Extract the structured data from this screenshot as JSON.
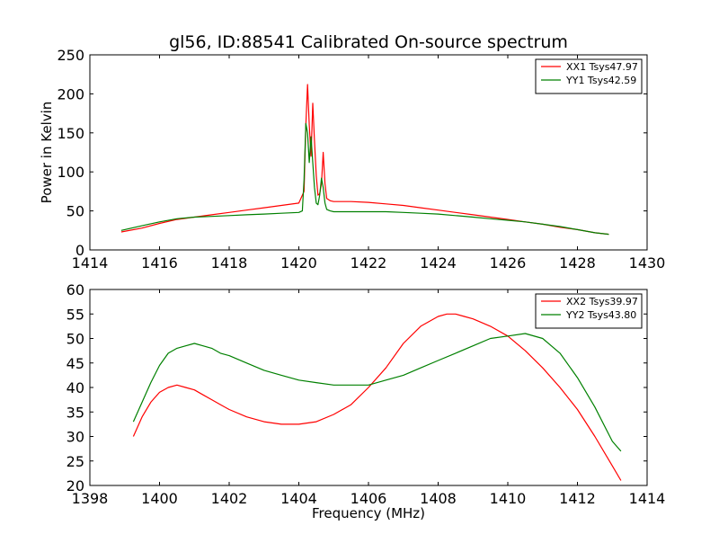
{
  "figure": {
    "title": "gl56, ID:88541 Calibrated On-source spectrum"
  },
  "chart_data": [
    {
      "type": "line",
      "xlabel": "",
      "ylabel": "Power in Kelvin",
      "xlim": [
        1414,
        1430
      ],
      "ylim": [
        0,
        250
      ],
      "xticks": [
        1414,
        1416,
        1418,
        1420,
        1422,
        1424,
        1426,
        1428,
        1430
      ],
      "yticks": [
        0,
        50,
        100,
        150,
        200,
        250
      ],
      "xtick_labels": [
        "1414",
        "1416",
        "1418",
        "1420",
        "1422",
        "1424",
        "1426",
        "1428",
        "1430"
      ],
      "ytick_labels": [
        "0",
        "50",
        "100",
        "150",
        "200",
        "250"
      ],
      "grid": false,
      "legend": "top-right",
      "series": [
        {
          "name": "XX1 Tsys47.97",
          "color": "#ff0000",
          "x": [
            1414.9,
            1415.5,
            1416.0,
            1416.5,
            1417.0,
            1417.5,
            1418.0,
            1418.5,
            1419.0,
            1419.5,
            1420.0,
            1420.15,
            1420.2,
            1420.25,
            1420.3,
            1420.35,
            1420.4,
            1420.45,
            1420.5,
            1420.55,
            1420.6,
            1420.65,
            1420.7,
            1420.75,
            1420.8,
            1420.9,
            1421.0,
            1421.5,
            1422.0,
            1422.5,
            1423.0,
            1423.5,
            1424.0,
            1424.5,
            1425.0,
            1425.5,
            1426.0,
            1426.5,
            1427.0,
            1427.5,
            1428.0,
            1428.5,
            1428.9
          ],
          "y": [
            23,
            28,
            34,
            39,
            42,
            45,
            48,
            51,
            54,
            57,
            60,
            75,
            160,
            212,
            160,
            120,
            188,
            140,
            95,
            70,
            72,
            85,
            125,
            85,
            66,
            63,
            62,
            62,
            61,
            59,
            57,
            54,
            51,
            48,
            45,
            42,
            39,
            36,
            33,
            29,
            26,
            22,
            20
          ]
        },
        {
          "name": "YY1 Tsys42.59",
          "color": "#008000",
          "x": [
            1414.9,
            1415.5,
            1416.0,
            1416.5,
            1417.0,
            1417.5,
            1418.0,
            1418.5,
            1419.0,
            1419.5,
            1420.0,
            1420.1,
            1420.15,
            1420.2,
            1420.25,
            1420.3,
            1420.35,
            1420.4,
            1420.45,
            1420.5,
            1420.55,
            1420.6,
            1420.65,
            1420.7,
            1420.75,
            1420.8,
            1420.9,
            1421.0,
            1421.5,
            1422.0,
            1422.5,
            1423.0,
            1423.5,
            1424.0,
            1424.5,
            1425.0,
            1425.5,
            1426.0,
            1426.5,
            1427.0,
            1427.5,
            1428.0,
            1428.5,
            1428.9
          ],
          "y": [
            25,
            31,
            36,
            40,
            42,
            43,
            44,
            45,
            46,
            47,
            48,
            50,
            90,
            162,
            150,
            112,
            145,
            112,
            80,
            60,
            58,
            70,
            92,
            80,
            60,
            52,
            50,
            49,
            49,
            49,
            49,
            48,
            47,
            46,
            44,
            42,
            40,
            38,
            36,
            33,
            30,
            26,
            22,
            20
          ]
        }
      ]
    },
    {
      "type": "line",
      "xlabel": "Frequency (MHz)",
      "ylabel": "",
      "xlim": [
        1398,
        1414
      ],
      "ylim": [
        20,
        60
      ],
      "xticks": [
        1398,
        1400,
        1402,
        1404,
        1406,
        1408,
        1410,
        1412,
        1414
      ],
      "yticks": [
        20,
        25,
        30,
        35,
        40,
        45,
        50,
        55,
        60
      ],
      "xtick_labels": [
        "1398",
        "1400",
        "1402",
        "1404",
        "1406",
        "1408",
        "1410",
        "1412",
        "1414"
      ],
      "ytick_labels": [
        "20",
        "25",
        "30",
        "35",
        "40",
        "45",
        "50",
        "55",
        "60"
      ],
      "grid": false,
      "legend": "top-right",
      "series": [
        {
          "name": "XX2 Tsys39.97",
          "color": "#ff0000",
          "x": [
            1399.25,
            1399.5,
            1399.75,
            1400.0,
            1400.25,
            1400.5,
            1400.75,
            1401.0,
            1401.25,
            1401.5,
            1401.75,
            1402.0,
            1402.5,
            1403.0,
            1403.5,
            1404.0,
            1404.5,
            1405.0,
            1405.5,
            1406.0,
            1406.5,
            1407.0,
            1407.5,
            1408.0,
            1408.25,
            1408.5,
            1408.75,
            1409.0,
            1409.5,
            1410.0,
            1410.5,
            1411.0,
            1411.5,
            1412.0,
            1412.5,
            1413.0,
            1413.25
          ],
          "y": [
            30,
            34,
            37,
            39,
            40,
            40.5,
            40,
            39.5,
            38.5,
            37.5,
            36.5,
            35.5,
            34,
            33,
            32.5,
            32.5,
            33,
            34.5,
            36.5,
            40,
            44,
            49,
            52.5,
            54.5,
            55,
            55,
            54.5,
            54,
            52.5,
            50.5,
            47.5,
            44,
            40,
            35.5,
            30,
            24,
            21
          ]
        },
        {
          "name": "YY2 Tsys43.80",
          "color": "#008000",
          "x": [
            1399.25,
            1399.5,
            1399.75,
            1400.0,
            1400.25,
            1400.5,
            1400.75,
            1401.0,
            1401.25,
            1401.5,
            1401.75,
            1402.0,
            1402.5,
            1403.0,
            1403.5,
            1404.0,
            1404.5,
            1405.0,
            1405.5,
            1406.0,
            1406.5,
            1407.0,
            1407.5,
            1408.0,
            1408.5,
            1409.0,
            1409.5,
            1410.0,
            1410.5,
            1411.0,
            1411.5,
            1412.0,
            1412.5,
            1413.0,
            1413.25
          ],
          "y": [
            33,
            37,
            41,
            44.5,
            47,
            48,
            48.5,
            49,
            48.5,
            48,
            47,
            46.5,
            45,
            43.5,
            42.5,
            41.5,
            41,
            40.5,
            40.5,
            40.5,
            41.5,
            42.5,
            44,
            45.5,
            47,
            48.5,
            50,
            50.5,
            51,
            50,
            47,
            42,
            36,
            29,
            27
          ]
        }
      ]
    }
  ]
}
